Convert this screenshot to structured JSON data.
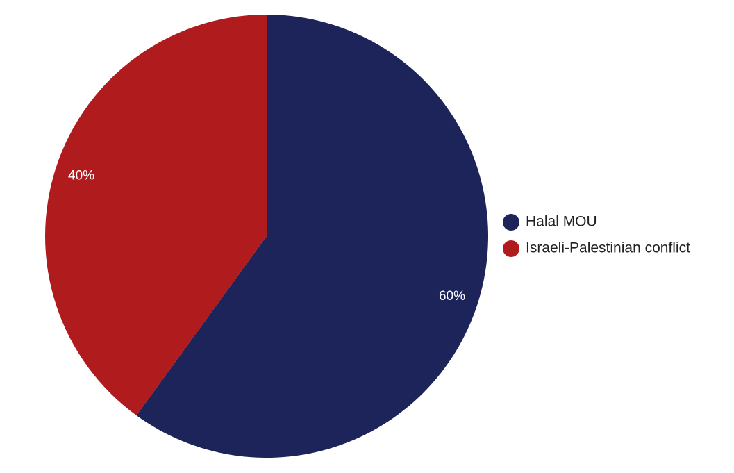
{
  "chart_data": {
    "type": "pie",
    "title": "",
    "slices": [
      {
        "label": "Halal MOU",
        "value": 60,
        "color": "#1c2459"
      },
      {
        "label": "Israeli-Palestinian conflict",
        "value": 40,
        "color": "#b01b1e"
      }
    ],
    "data_labels": [
      "60%",
      "40%"
    ],
    "start_angle": "12 o'clock",
    "direction": "clockwise",
    "legend": {
      "placement": "right",
      "marker": "circle"
    }
  }
}
